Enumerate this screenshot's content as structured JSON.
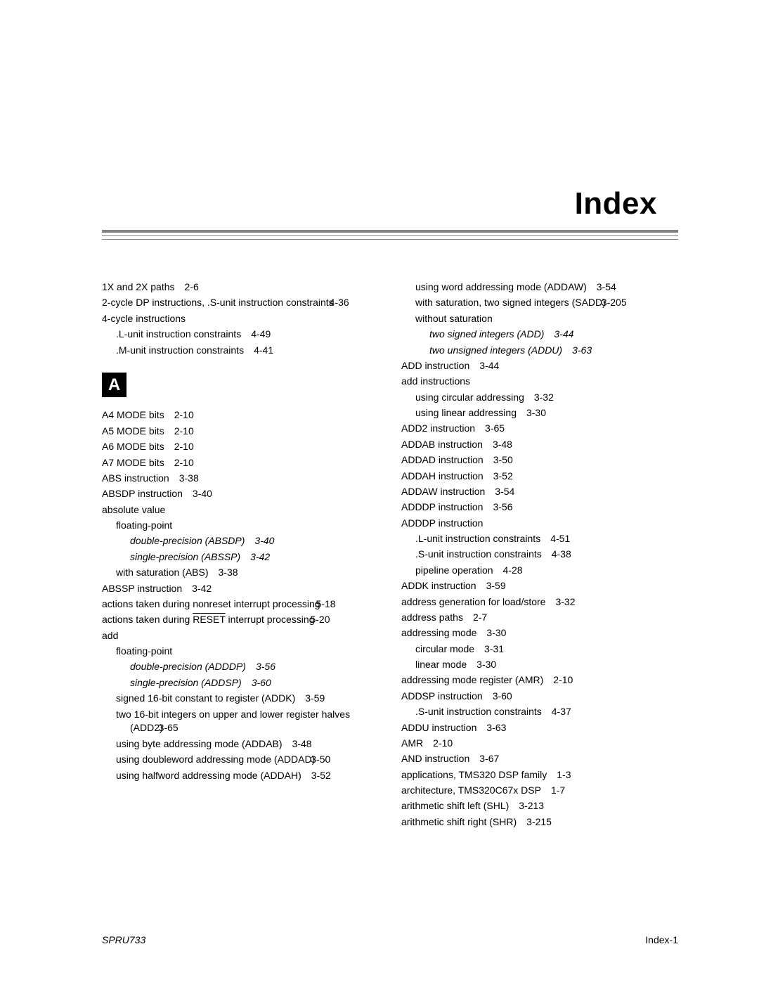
{
  "title": "Index",
  "section_letter": "A",
  "footer": {
    "left": "SPRU733",
    "right": "Index-1"
  },
  "colors": {
    "rule": "#808080",
    "text": "#000000",
    "bg": "#ffffff"
  },
  "typography": {
    "title_size": 44,
    "body_size": 14,
    "font_family": "Arial"
  },
  "left_pre": [
    {
      "lvl": 0,
      "text": "1X and 2X paths",
      "ref": "2-6"
    },
    {
      "lvl": 0,
      "text": "2-cycle DP instructions, .S-unit instruction constraints",
      "ref": "4-36",
      "wrap": true
    },
    {
      "lvl": 0,
      "text": "4-cycle instructions"
    },
    {
      "lvl": 1,
      "text": ".L-unit instruction constraints",
      "ref": "4-49"
    },
    {
      "lvl": 1,
      "text": ".M-unit instruction constraints",
      "ref": "4-41"
    }
  ],
  "left_main": [
    {
      "lvl": 0,
      "text": "A4 MODE bits",
      "ref": "2-10"
    },
    {
      "lvl": 0,
      "text": "A5 MODE bits",
      "ref": "2-10"
    },
    {
      "lvl": 0,
      "text": "A6 MODE bits",
      "ref": "2-10"
    },
    {
      "lvl": 0,
      "text": "A7 MODE bits",
      "ref": "2-10"
    },
    {
      "lvl": 0,
      "text": "ABS instruction",
      "ref": "3-38"
    },
    {
      "lvl": 0,
      "text": "ABSDP instruction",
      "ref": "3-40"
    },
    {
      "lvl": 0,
      "text": "absolute value"
    },
    {
      "lvl": 1,
      "text": "floating-point"
    },
    {
      "lvl": 2,
      "text": "double-precision (ABSDP)",
      "ref": "3-40",
      "italic": true
    },
    {
      "lvl": 2,
      "text": "single-precision (ABSSP)",
      "ref": "3-42",
      "italic": true
    },
    {
      "lvl": 1,
      "text": "with saturation (ABS)",
      "ref": "3-38"
    },
    {
      "lvl": 0,
      "text": "ABSSP instruction",
      "ref": "3-42"
    },
    {
      "lvl": 0,
      "text": "actions taken during nonreset interrupt processing",
      "ref": "5-18",
      "wrap": true
    },
    {
      "lvl": 0,
      "text": "actions taken during ",
      "reset": true,
      "text2": " interrupt processing",
      "ref": "5-20",
      "wrap": true
    },
    {
      "lvl": 0,
      "text": "add"
    },
    {
      "lvl": 1,
      "text": "floating-point"
    },
    {
      "lvl": 2,
      "text": "double-precision (ADDDP)",
      "ref": "3-56",
      "italic": true
    },
    {
      "lvl": 2,
      "text": "single-precision (ADDSP)",
      "ref": "3-60",
      "italic": true
    },
    {
      "lvl": 1,
      "text": "signed 16-bit constant to register (ADDK)",
      "ref": "3-59"
    },
    {
      "lvl": 1,
      "text": "two 16-bit integers on upper and lower register halves (ADD2)",
      "ref": "3-65",
      "wrap": true
    },
    {
      "lvl": 1,
      "text": "using byte addressing mode (ADDAB)",
      "ref": "3-48"
    },
    {
      "lvl": 1,
      "text": "using doubleword addressing mode (ADDAD)",
      "ref": "3-50",
      "wrap": true
    },
    {
      "lvl": 1,
      "text": "using halfword addressing mode (ADDAH)",
      "ref": "3-52"
    }
  ],
  "right": [
    {
      "lvl": 1,
      "text": "using word addressing mode (ADDAW)",
      "ref": "3-54"
    },
    {
      "lvl": 1,
      "text": "with saturation, two signed integers (SADD)",
      "ref": "3-205",
      "wrap": true
    },
    {
      "lvl": 1,
      "text": "without saturation"
    },
    {
      "lvl": 2,
      "text": "two signed integers (ADD)",
      "ref": "3-44",
      "italic": true
    },
    {
      "lvl": 2,
      "text": "two unsigned integers (ADDU)",
      "ref": "3-63",
      "italic": true
    },
    {
      "lvl": 0,
      "text": "ADD instruction",
      "ref": "3-44"
    },
    {
      "lvl": 0,
      "text": "add instructions"
    },
    {
      "lvl": 1,
      "text": "using circular addressing",
      "ref": "3-32"
    },
    {
      "lvl": 1,
      "text": "using linear addressing",
      "ref": "3-30"
    },
    {
      "lvl": 0,
      "text": "ADD2 instruction",
      "ref": "3-65"
    },
    {
      "lvl": 0,
      "text": "ADDAB instruction",
      "ref": "3-48"
    },
    {
      "lvl": 0,
      "text": "ADDAD instruction",
      "ref": "3-50"
    },
    {
      "lvl": 0,
      "text": "ADDAH instruction",
      "ref": "3-52"
    },
    {
      "lvl": 0,
      "text": "ADDAW instruction",
      "ref": "3-54"
    },
    {
      "lvl": 0,
      "text": "ADDDP instruction",
      "ref": "3-56"
    },
    {
      "lvl": 0,
      "text": "ADDDP instruction"
    },
    {
      "lvl": 1,
      "text": ".L-unit instruction constraints",
      "ref": "4-51"
    },
    {
      "lvl": 1,
      "text": ".S-unit instruction constraints",
      "ref": "4-38"
    },
    {
      "lvl": 1,
      "text": "pipeline operation",
      "ref": "4-28"
    },
    {
      "lvl": 0,
      "text": "ADDK instruction",
      "ref": "3-59"
    },
    {
      "lvl": 0,
      "text": "address generation for load/store",
      "ref": "3-32"
    },
    {
      "lvl": 0,
      "text": "address paths",
      "ref": "2-7"
    },
    {
      "lvl": 0,
      "text": "addressing mode",
      "ref": "3-30"
    },
    {
      "lvl": 1,
      "text": "circular mode",
      "ref": "3-31"
    },
    {
      "lvl": 1,
      "text": "linear mode",
      "ref": "3-30"
    },
    {
      "lvl": 0,
      "text": "addressing mode register (AMR)",
      "ref": "2-10"
    },
    {
      "lvl": 0,
      "text": "ADDSP instruction",
      "ref": "3-60"
    },
    {
      "lvl": 1,
      "text": ".S-unit instruction constraints",
      "ref": "4-37"
    },
    {
      "lvl": 0,
      "text": "ADDU instruction",
      "ref": "3-63"
    },
    {
      "lvl": 0,
      "text": "AMR",
      "ref": "2-10"
    },
    {
      "lvl": 0,
      "text": "AND instruction",
      "ref": "3-67"
    },
    {
      "lvl": 0,
      "text": "applications, TMS320 DSP family",
      "ref": "1-3"
    },
    {
      "lvl": 0,
      "text": "architecture, TMS320C67x DSP",
      "ref": "1-7"
    },
    {
      "lvl": 0,
      "text": "arithmetic shift left (SHL)",
      "ref": "3-213"
    },
    {
      "lvl": 0,
      "text": "arithmetic shift right (SHR)",
      "ref": "3-215"
    }
  ]
}
